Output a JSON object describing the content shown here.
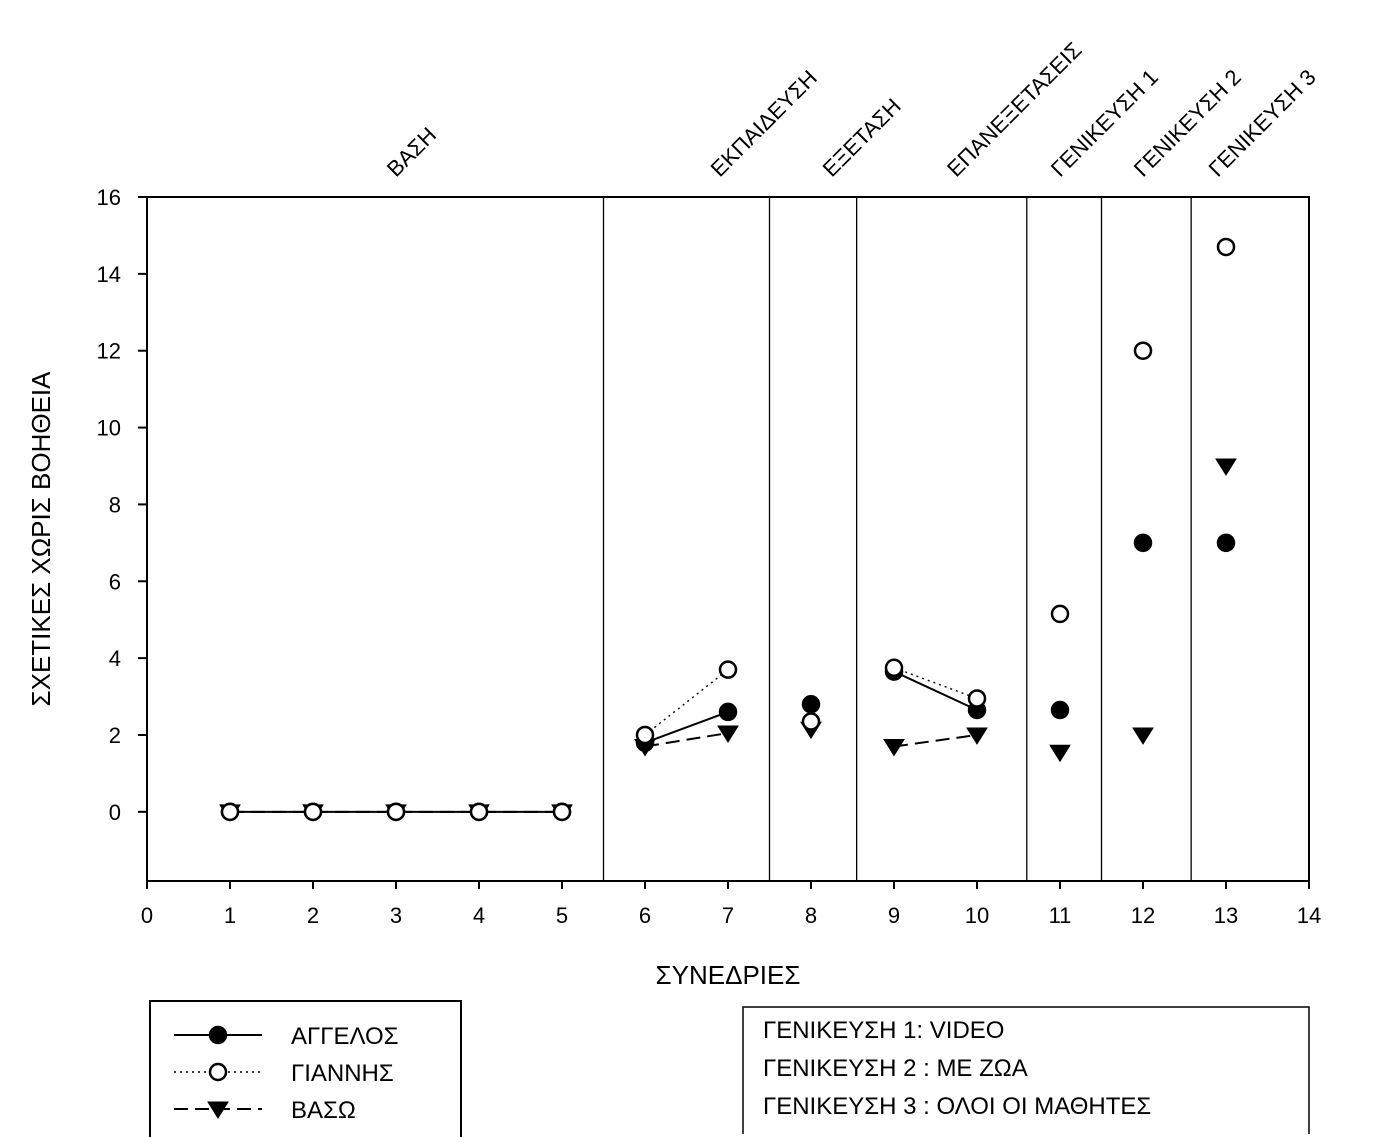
{
  "chart_data": {
    "type": "line",
    "xlabel": "ΣΥΝΕΔΡΙΕΣ",
    "ylabel": "ΣΧΕΤΙΚΕΣ ΧΩΡΙΣ ΒΟΗΘΕΙΑ",
    "xlim": [
      0,
      14
    ],
    "ylim": [
      -1.8,
      16
    ],
    "x_ticks": [
      0,
      1,
      2,
      3,
      4,
      5,
      6,
      7,
      8,
      9,
      10,
      11,
      12,
      13,
      14
    ],
    "y_ticks": [
      0,
      2,
      4,
      6,
      8,
      10,
      12,
      14,
      16
    ],
    "grid": false,
    "phase_dividers": [
      5.5,
      7.5,
      8.55,
      10.6,
      11.5,
      12.58
    ],
    "phases": [
      {
        "label": "ΒΑΣΗ",
        "x": 3
      },
      {
        "label": "ΕΚΠΑΙΔΕΥΣΗ",
        "x": 6.9
      },
      {
        "label": "ΕΞΕΤΑΣΗ",
        "x": 8.25
      },
      {
        "label": "ΕΠΑΝΕΞΕΤΑΣΕΙΣ",
        "x": 9.75
      },
      {
        "label": "ΓΕΝΙΚΕΥΣΗ 1",
        "x": 11.0
      },
      {
        "label": "ΓΕΝΙΚΕΥΣΗ 2",
        "x": 12.0
      },
      {
        "label": "ΓΕΝΙΚΕΥΣΗ 3",
        "x": 12.9
      }
    ],
    "series": [
      {
        "name": "ΑΓΓΕΛΟΣ",
        "marker": "filled-circle",
        "line": "solid",
        "points": [
          [
            1,
            0
          ],
          [
            2,
            0
          ],
          [
            3,
            0
          ],
          [
            4,
            0
          ],
          [
            5,
            0
          ],
          [
            6,
            1.8
          ],
          [
            7,
            2.6
          ],
          [
            8,
            2.8
          ],
          [
            9,
            3.65
          ],
          [
            10,
            2.65
          ],
          [
            11,
            2.65
          ],
          [
            12,
            7
          ],
          [
            13,
            7
          ]
        ],
        "segments": [
          [
            1,
            2,
            3,
            4,
            5
          ],
          [
            6,
            7
          ],
          [
            9,
            10
          ]
        ]
      },
      {
        "name": "ΓΙΑΝΝΗΣ",
        "marker": "open-circle",
        "line": "dotted",
        "points": [
          [
            1,
            0
          ],
          [
            2,
            0
          ],
          [
            3,
            0
          ],
          [
            4,
            0
          ],
          [
            5,
            0
          ],
          [
            6,
            2
          ],
          [
            7,
            3.7
          ],
          [
            8,
            2.35
          ],
          [
            9,
            3.75
          ],
          [
            10,
            2.95
          ],
          [
            11,
            5.15
          ],
          [
            12,
            12
          ],
          [
            13,
            14.7
          ]
        ],
        "segments": [
          [
            1,
            2,
            3,
            4,
            5
          ],
          [
            6,
            7
          ],
          [
            9,
            10
          ]
        ]
      },
      {
        "name": "ΒΑΣΩ",
        "marker": "filled-triangle-down",
        "line": "dashed",
        "points": [
          [
            1,
            0
          ],
          [
            2,
            0
          ],
          [
            3,
            0
          ],
          [
            4,
            0
          ],
          [
            5,
            0
          ],
          [
            6,
            1.7
          ],
          [
            7,
            2.05
          ],
          [
            8,
            2.15
          ],
          [
            9,
            1.7
          ],
          [
            10,
            2
          ],
          [
            11,
            1.55
          ],
          [
            12,
            2
          ],
          [
            13,
            9
          ]
        ],
        "segments": [
          [
            1,
            2,
            3,
            4,
            5
          ],
          [
            6,
            7
          ],
          [
            9,
            10
          ]
        ]
      }
    ],
    "legend": {
      "placement": "bottom-left",
      "entries": [
        "ΑΓΓΕΛΟΣ",
        "ΓΙΑΝΝΗΣ",
        "ΒΑΣΩ"
      ]
    },
    "notes": [
      "ΓΕΝΙΚΕΥΣΗ 1: VIDEO",
      "ΓΕΝΙΚΕΥΣΗ 2 : ΜΕ ΖΩΑ",
      "ΓΕΝΙΚΕΥΣΗ 3 : ΟΛΟΙ ΟΙ ΜΑΘΗΤΕΣ"
    ],
    "colors": {
      "ink": "#000000",
      "background": "#ffffff"
    }
  }
}
